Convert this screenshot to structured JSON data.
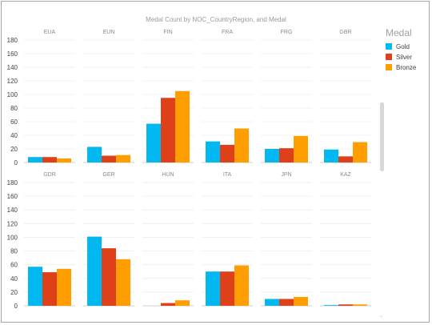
{
  "title": "Medal Count by NOC_CountryRegion, and Medal",
  "legend": {
    "title": "Medal",
    "items": [
      {
        "label": "Gold",
        "color": "#01B8F0"
      },
      {
        "label": "Silver",
        "color": "#DE4119"
      },
      {
        "label": "Bronze",
        "color": "#FF9E00"
      }
    ]
  },
  "scroll_arrow": "⌄",
  "chart_data": {
    "type": "bar",
    "title": "Medal Count by NOC_CountryRegion, and Medal",
    "grid": true,
    "legend_position": "right",
    "series_names": [
      "Gold",
      "Silver",
      "Bronze"
    ],
    "ylim": [
      0,
      180
    ],
    "yticks": [
      0,
      20,
      40,
      60,
      80,
      100,
      120,
      140,
      160,
      180
    ],
    "rows": [
      {
        "panels": [
          {
            "country": "EUA",
            "values": [
              8,
              8,
              6
            ]
          },
          {
            "country": "EUN",
            "values": [
              23,
              10,
              11
            ]
          },
          {
            "country": "FIN",
            "values": [
              57,
              95,
              105
            ]
          },
          {
            "country": "FRA",
            "values": [
              31,
              26,
              50
            ]
          },
          {
            "country": "FRG",
            "values": [
              20,
              21,
              39
            ]
          },
          {
            "country": "GBR",
            "values": [
              19,
              9,
              30
            ]
          }
        ]
      },
      {
        "panels": [
          {
            "country": "GDR",
            "values": [
              57,
              49,
              54
            ]
          },
          {
            "country": "GER",
            "values": [
              101,
              84,
              68
            ]
          },
          {
            "country": "HUN",
            "values": [
              0,
              4,
              8
            ]
          },
          {
            "country": "ITA",
            "values": [
              50,
              50,
              59
            ]
          },
          {
            "country": "JPN",
            "values": [
              10,
              10,
              13
            ]
          },
          {
            "country": "KAZ",
            "values": [
              1,
              2,
              2
            ]
          }
        ]
      }
    ]
  }
}
